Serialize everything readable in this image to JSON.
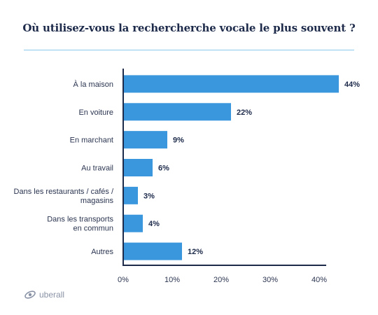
{
  "chart_data": {
    "type": "bar",
    "orientation": "horizontal",
    "title": "Où utilisez-vous la rechercherche vocale le plus souvent ?",
    "categories": [
      [
        "À la maison"
      ],
      [
        "En voiture"
      ],
      [
        "En marchant"
      ],
      [
        "Au travail"
      ],
      [
        "Dans les restaurants / cafés /",
        "magasins"
      ],
      [
        "Dans les transports",
        "en commun"
      ],
      [
        "Autres"
      ]
    ],
    "values": [
      44,
      22,
      9,
      6,
      3,
      4,
      12
    ],
    "value_labels": [
      "44%",
      "22%",
      "9%",
      "6%",
      "3%",
      "4%",
      "12%"
    ],
    "xlim": [
      0,
      44
    ],
    "xticks": [
      0,
      10,
      20,
      30,
      40
    ],
    "xtick_labels": [
      "0%",
      "10%",
      "20%",
      "30%",
      "40%"
    ],
    "xlabel": "",
    "ylabel": "",
    "grid": false,
    "bar_color": "#3b97dd"
  },
  "branding": {
    "logo_text": "uberall"
  }
}
